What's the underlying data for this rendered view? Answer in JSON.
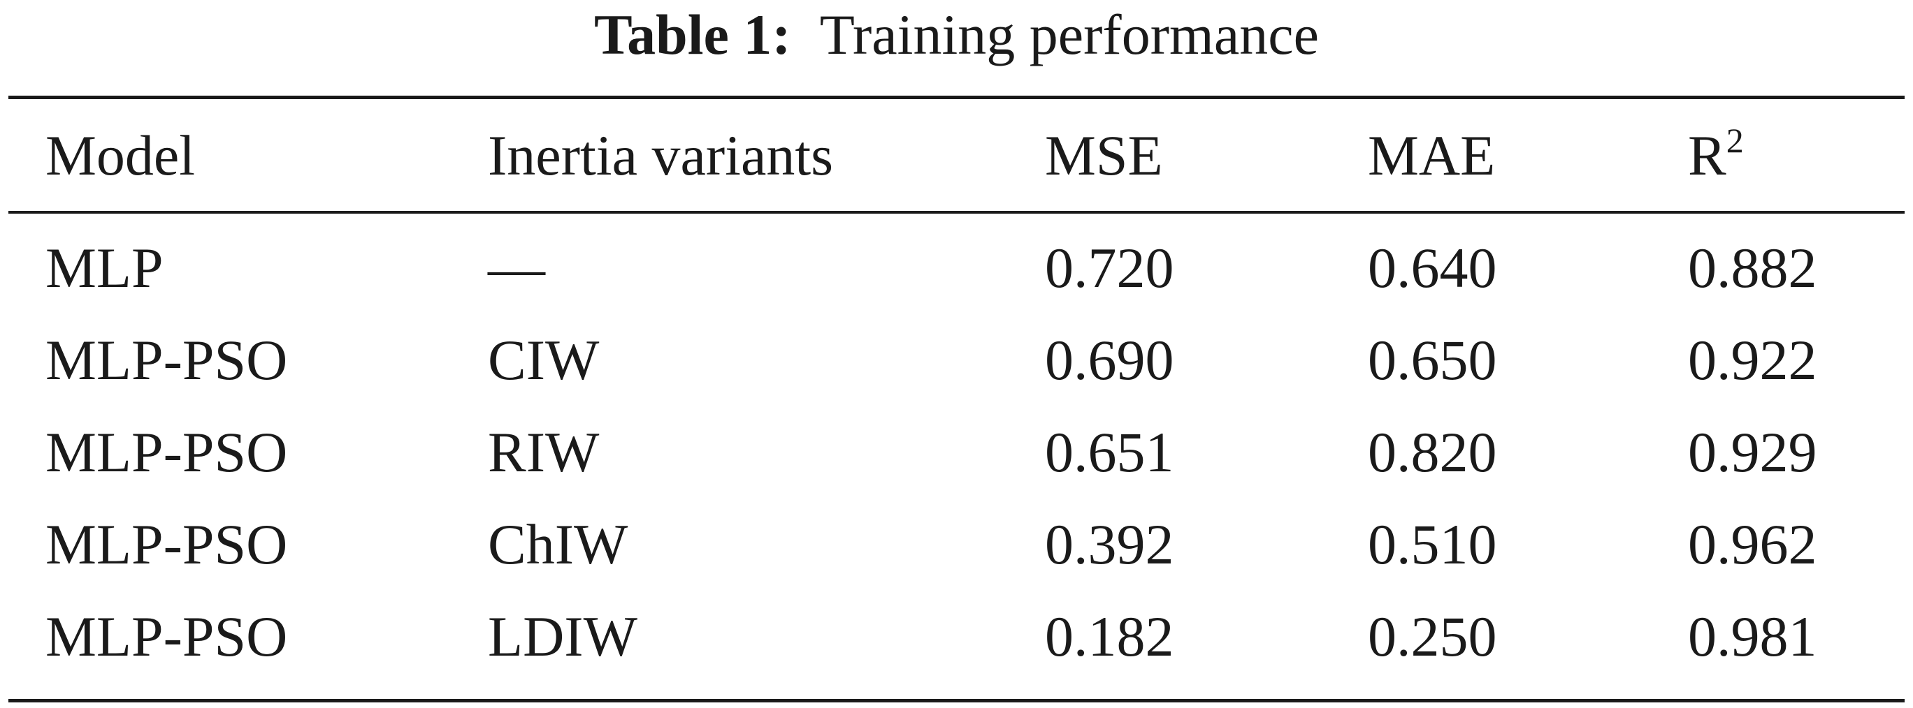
{
  "caption": {
    "label": "Table 1:",
    "title": "Training performance"
  },
  "table": {
    "headers": {
      "model": "Model",
      "variant": "Inertia variants",
      "mse": "MSE",
      "mae": "MAE",
      "r2_base": "R",
      "r2_sup": "2"
    },
    "rows": [
      {
        "model": "MLP",
        "variant": "—",
        "mse": "0.720",
        "mae": "0.640",
        "r2": "0.882"
      },
      {
        "model": "MLP-PSO",
        "variant": "CIW",
        "mse": "0.690",
        "mae": "0.650",
        "r2": "0.922"
      },
      {
        "model": "MLP-PSO",
        "variant": "RIW",
        "mse": "0.651",
        "mae": "0.820",
        "r2": "0.929"
      },
      {
        "model": "MLP-PSO",
        "variant": "ChIW",
        "mse": "0.392",
        "mae": "0.510",
        "r2": "0.962"
      },
      {
        "model": "MLP-PSO",
        "variant": "LDIW",
        "mse": "0.182",
        "mae": "0.250",
        "r2": "0.981"
      }
    ]
  }
}
